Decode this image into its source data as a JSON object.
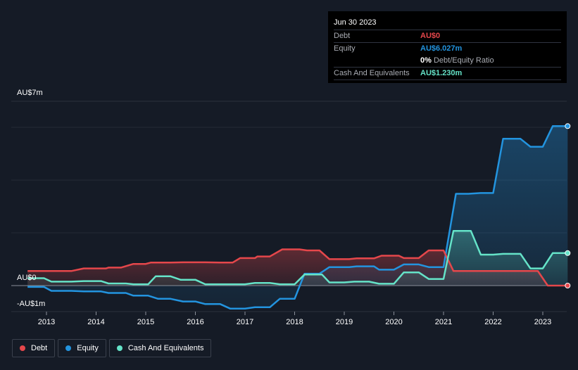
{
  "chart_data": {
    "type": "area",
    "title": "",
    "y_axis": {
      "top_label": "AU$7m",
      "zero_label": "AU$0",
      "bottom_label": "-AU$1m",
      "ylim": [
        -1,
        7
      ]
    },
    "x_axis": {
      "ticks": [
        "2013",
        "2014",
        "2015",
        "2016",
        "2017",
        "2018",
        "2019",
        "2020",
        "2021",
        "2022",
        "2023"
      ],
      "xlim": [
        2012.62,
        2023.5
      ]
    },
    "series": [
      {
        "name": "Debt",
        "color": "#e5474b",
        "points": [
          [
            2012.62,
            0.55
          ],
          [
            2013.5,
            0.55
          ],
          [
            2013.75,
            0.65
          ],
          [
            2014.2,
            0.65
          ],
          [
            2014.25,
            0.68
          ],
          [
            2014.5,
            0.68
          ],
          [
            2014.75,
            0.82
          ],
          [
            2015.0,
            0.82
          ],
          [
            2015.1,
            0.87
          ],
          [
            2015.5,
            0.87
          ],
          [
            2015.75,
            0.88
          ],
          [
            2016.2,
            0.88
          ],
          [
            2016.5,
            0.87
          ],
          [
            2016.75,
            0.87
          ],
          [
            2016.9,
            1.04
          ],
          [
            2017.2,
            1.04
          ],
          [
            2017.25,
            1.1
          ],
          [
            2017.5,
            1.1
          ],
          [
            2017.75,
            1.37
          ],
          [
            2018.1,
            1.37
          ],
          [
            2018.25,
            1.33
          ],
          [
            2018.5,
            1.33
          ],
          [
            2018.7,
            1.0
          ],
          [
            2019.1,
            1.0
          ],
          [
            2019.25,
            1.03
          ],
          [
            2019.6,
            1.03
          ],
          [
            2019.75,
            1.13
          ],
          [
            2020.1,
            1.13
          ],
          [
            2020.2,
            1.04
          ],
          [
            2020.5,
            1.04
          ],
          [
            2020.7,
            1.33
          ],
          [
            2021.0,
            1.33
          ],
          [
            2021.2,
            0.55
          ],
          [
            2022.0,
            0.55
          ],
          [
            2022.9,
            0.55
          ],
          [
            2023.1,
            0.0
          ],
          [
            2023.5,
            0.0
          ]
        ]
      },
      {
        "name": "Equity",
        "color": "#2394df",
        "points": [
          [
            2012.62,
            -0.05
          ],
          [
            2012.95,
            -0.05
          ],
          [
            2013.1,
            -0.2
          ],
          [
            2013.5,
            -0.2
          ],
          [
            2013.75,
            -0.22
          ],
          [
            2014.1,
            -0.22
          ],
          [
            2014.25,
            -0.28
          ],
          [
            2014.6,
            -0.28
          ],
          [
            2014.75,
            -0.38
          ],
          [
            2015.05,
            -0.38
          ],
          [
            2015.25,
            -0.5
          ],
          [
            2015.5,
            -0.5
          ],
          [
            2015.75,
            -0.6
          ],
          [
            2016.0,
            -0.6
          ],
          [
            2016.2,
            -0.7
          ],
          [
            2016.5,
            -0.7
          ],
          [
            2016.7,
            -0.87
          ],
          [
            2017.0,
            -0.87
          ],
          [
            2017.2,
            -0.82
          ],
          [
            2017.5,
            -0.82
          ],
          [
            2017.7,
            -0.5
          ],
          [
            2018.0,
            -0.5
          ],
          [
            2018.2,
            0.45
          ],
          [
            2018.5,
            0.45
          ],
          [
            2018.7,
            0.7
          ],
          [
            2019.1,
            0.7
          ],
          [
            2019.25,
            0.73
          ],
          [
            2019.6,
            0.73
          ],
          [
            2019.7,
            0.6
          ],
          [
            2020.0,
            0.6
          ],
          [
            2020.2,
            0.8
          ],
          [
            2020.5,
            0.8
          ],
          [
            2020.7,
            0.7
          ],
          [
            2021.0,
            0.7
          ],
          [
            2021.25,
            3.47
          ],
          [
            2021.5,
            3.47
          ],
          [
            2021.75,
            3.5
          ],
          [
            2022.0,
            3.5
          ],
          [
            2022.2,
            5.55
          ],
          [
            2022.55,
            5.55
          ],
          [
            2022.75,
            5.25
          ],
          [
            2023.0,
            5.25
          ],
          [
            2023.2,
            6.03
          ],
          [
            2023.5,
            6.03
          ]
        ]
      },
      {
        "name": "Cash And Equivalents",
        "color": "#65e3c8",
        "points": [
          [
            2012.62,
            0.28
          ],
          [
            2012.95,
            0.28
          ],
          [
            2013.1,
            0.15
          ],
          [
            2013.5,
            0.15
          ],
          [
            2013.75,
            0.17
          ],
          [
            2014.1,
            0.17
          ],
          [
            2014.25,
            0.08
          ],
          [
            2014.6,
            0.08
          ],
          [
            2014.75,
            0.05
          ],
          [
            2015.05,
            0.05
          ],
          [
            2015.2,
            0.35
          ],
          [
            2015.5,
            0.35
          ],
          [
            2015.7,
            0.22
          ],
          [
            2016.0,
            0.22
          ],
          [
            2016.2,
            0.05
          ],
          [
            2016.5,
            0.05
          ],
          [
            2016.7,
            0.05
          ],
          [
            2017.0,
            0.05
          ],
          [
            2017.2,
            0.1
          ],
          [
            2017.5,
            0.1
          ],
          [
            2017.7,
            0.05
          ],
          [
            2018.0,
            0.05
          ],
          [
            2018.2,
            0.42
          ],
          [
            2018.55,
            0.42
          ],
          [
            2018.7,
            0.12
          ],
          [
            2019.0,
            0.12
          ],
          [
            2019.2,
            0.15
          ],
          [
            2019.5,
            0.15
          ],
          [
            2019.7,
            0.07
          ],
          [
            2020.0,
            0.07
          ],
          [
            2020.2,
            0.5
          ],
          [
            2020.5,
            0.5
          ],
          [
            2020.7,
            0.25
          ],
          [
            2021.0,
            0.25
          ],
          [
            2021.2,
            2.07
          ],
          [
            2021.55,
            2.07
          ],
          [
            2021.75,
            1.17
          ],
          [
            2022.0,
            1.17
          ],
          [
            2022.2,
            1.2
          ],
          [
            2022.55,
            1.2
          ],
          [
            2022.75,
            0.65
          ],
          [
            2023.0,
            0.65
          ],
          [
            2023.2,
            1.23
          ],
          [
            2023.5,
            1.23
          ]
        ]
      }
    ],
    "grid": true,
    "legend_position": "bottom-left"
  },
  "tooltip": {
    "date": "Jun 30 2023",
    "rows": [
      {
        "label": "Debt",
        "value": "AU$0",
        "color": "#e5474b"
      },
      {
        "label": "Equity",
        "value": "AU$6.027m",
        "color": "#2394df"
      },
      {
        "label": "",
        "value": "0%",
        "sub": "Debt/Equity Ratio",
        "color": "#ffffff"
      },
      {
        "label": "Cash And Equivalents",
        "value": "AU$1.230m",
        "color": "#65e3c8"
      }
    ]
  },
  "legend": [
    {
      "label": "Debt",
      "color": "#e5474b"
    },
    {
      "label": "Equity",
      "color": "#2394df"
    },
    {
      "label": "Cash And Equivalents",
      "color": "#65e3c8"
    }
  ]
}
